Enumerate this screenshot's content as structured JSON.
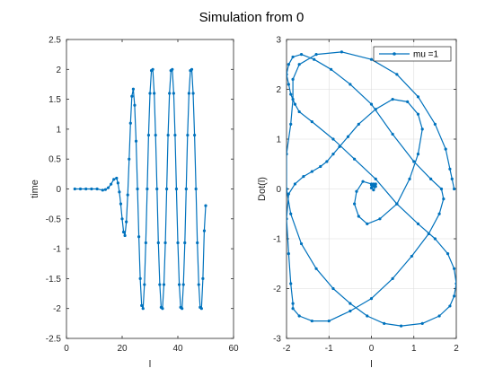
{
  "figure": {
    "title": "Simulation from 0",
    "colors": {
      "series": "#0072bd",
      "axis": "#262626",
      "grid": "#dcdcdc",
      "background": "#ffffff"
    }
  },
  "chart_data": [
    {
      "type": "line",
      "marker": "dot",
      "xlabel": "l",
      "ylabel": "time",
      "xlim": [
        0,
        60
      ],
      "ylim": [
        -2.5,
        2.5
      ],
      "xticks": [
        0,
        20,
        40,
        60
      ],
      "yticks": [
        -2.5,
        -2,
        -1.5,
        -1,
        -0.5,
        0,
        0.5,
        1,
        1.5,
        2,
        2.5
      ],
      "grid": false,
      "series": [
        {
          "x": [
            3.0,
            5.0,
            7.0,
            9.0,
            11.0,
            13.0,
            14.0,
            15.0,
            16.0,
            17.0,
            18.0,
            18.5,
            19.0,
            19.5,
            20.0,
            20.5,
            21.0,
            21.5,
            22.0,
            22.5,
            23.0,
            23.5,
            24.0,
            24.5,
            25.0,
            25.5,
            26.0,
            26.5,
            27.0,
            27.5,
            28.0,
            28.5,
            29.0,
            29.5,
            30.0,
            30.5,
            31.0,
            31.5,
            32.0,
            32.5,
            33.0,
            33.5,
            34.0,
            34.5,
            35.0,
            35.5,
            36.0,
            36.5,
            37.0,
            37.5,
            38.0,
            38.5,
            39.0,
            39.5,
            40.0,
            40.5,
            41.0,
            41.5,
            42.0,
            42.5,
            43.0,
            43.5,
            44.0,
            44.5,
            45.0,
            45.5,
            46.0,
            46.5,
            47.0,
            47.5,
            48.0,
            48.5,
            49.0,
            49.5,
            50.0
          ],
          "y": [
            0.0,
            0.0,
            0.0,
            0.0,
            0.0,
            -0.02,
            -0.01,
            0.02,
            0.08,
            0.16,
            0.18,
            0.1,
            -0.05,
            -0.25,
            -0.5,
            -0.72,
            -0.78,
            -0.55,
            -0.1,
            0.5,
            1.1,
            1.55,
            1.67,
            1.4,
            0.8,
            0.0,
            -0.8,
            -1.5,
            -1.95,
            -2.0,
            -1.6,
            -0.9,
            0.0,
            0.9,
            1.6,
            1.98,
            2.0,
            1.6,
            0.9,
            0.0,
            -0.9,
            -1.6,
            -1.98,
            -2.0,
            -1.6,
            -0.9,
            0.0,
            0.9,
            1.6,
            1.98,
            2.0,
            1.6,
            0.9,
            0.0,
            -0.9,
            -1.6,
            -1.98,
            -2.0,
            -1.6,
            -0.9,
            0.0,
            0.9,
            1.6,
            1.98,
            2.0,
            1.6,
            0.9,
            0.0,
            -0.9,
            -1.6,
            -1.98,
            -2.0,
            -1.5,
            -0.7,
            -0.28
          ]
        }
      ]
    },
    {
      "type": "line",
      "marker": "dot",
      "xlabel": "l",
      "ylabel": "Dot(l)",
      "xlim": [
        -2,
        2
      ],
      "ylim": [
        -3,
        3
      ],
      "xticks": [
        -2,
        -1,
        0,
        1,
        2
      ],
      "yticks": [
        -3,
        -2,
        -1,
        0,
        1,
        2,
        3
      ],
      "grid": true,
      "legend": {
        "placement": "top-right",
        "entries": [
          "mu =1"
        ]
      },
      "series": [
        {
          "name": "mu =1",
          "x": [
            0.05,
            0.1,
            0.1,
            0.05,
            0.0,
            0.0,
            0.05,
            0.0,
            -0.2,
            -0.35,
            -0.4,
            -0.3,
            -0.1,
            0.2,
            0.6,
            0.9,
            1.1,
            1.2,
            1.1,
            0.85,
            0.5,
            0.1,
            -0.3,
            -0.55,
            -0.75,
            -0.9,
            -1.05,
            -1.2,
            -1.4,
            -1.6,
            -1.8,
            -1.95,
            -2.0,
            -1.95,
            -1.9,
            -1.85,
            -1.85,
            -1.7,
            -1.4,
            -1.0,
            -0.5,
            0.0,
            0.5,
            0.95,
            1.35,
            1.6,
            1.7,
            1.65,
            1.4,
            1.0,
            0.5,
            0.0,
            -0.5,
            -0.95,
            -1.35,
            -1.65,
            -1.85,
            -1.95,
            -2.0,
            -1.95,
            -1.9,
            -1.8,
            -1.7,
            -1.4,
            -0.9,
            -0.4,
            0.1,
            0.6,
            1.1,
            1.5,
            1.8,
            1.95,
            2.0,
            1.95,
            1.85,
            1.6,
            1.2,
            0.7,
            0.3,
            -0.1,
            -0.5,
            -0.9,
            -1.3,
            -1.65,
            -1.9,
            -2.0,
            -2.0,
            -1.9,
            -1.85,
            -1.85,
            -1.7,
            -1.3,
            -0.7,
            0.0,
            0.6,
            1.1,
            1.5,
            1.75,
            1.85,
            1.9,
            1.95
          ],
          "y": [
            0.05,
            0.1,
            0.05,
            -0.02,
            0.02,
            0.08,
            0.1,
            0.1,
            0.15,
            -0.05,
            -0.3,
            -0.55,
            -0.7,
            -0.6,
            -0.3,
            0.2,
            0.7,
            1.2,
            1.5,
            1.75,
            1.8,
            1.6,
            1.3,
            1.05,
            0.85,
            0.7,
            0.55,
            0.45,
            0.35,
            0.25,
            0.1,
            -0.1,
            -0.6,
            -1.3,
            -1.9,
            -2.3,
            -2.4,
            -2.55,
            -2.65,
            -2.65,
            -2.45,
            -2.2,
            -1.8,
            -1.35,
            -0.9,
            -0.5,
            -0.2,
            0.0,
            0.2,
            0.55,
            1.1,
            1.7,
            2.1,
            2.4,
            2.6,
            2.7,
            2.65,
            2.5,
            2.3,
            2.1,
            1.9,
            1.7,
            1.55,
            1.35,
            1.0,
            0.6,
            0.2,
            -0.3,
            -0.7,
            -1.0,
            -1.3,
            -1.6,
            -1.9,
            -2.15,
            -2.35,
            -2.55,
            -2.7,
            -2.75,
            -2.7,
            -2.55,
            -2.3,
            -2.0,
            -1.6,
            -1.1,
            -0.5,
            0.0,
            0.7,
            1.3,
            1.8,
            2.2,
            2.5,
            2.7,
            2.75,
            2.6,
            2.3,
            1.85,
            1.3,
            0.8,
            0.4,
            0.2,
            0.0
          ]
        }
      ]
    }
  ]
}
